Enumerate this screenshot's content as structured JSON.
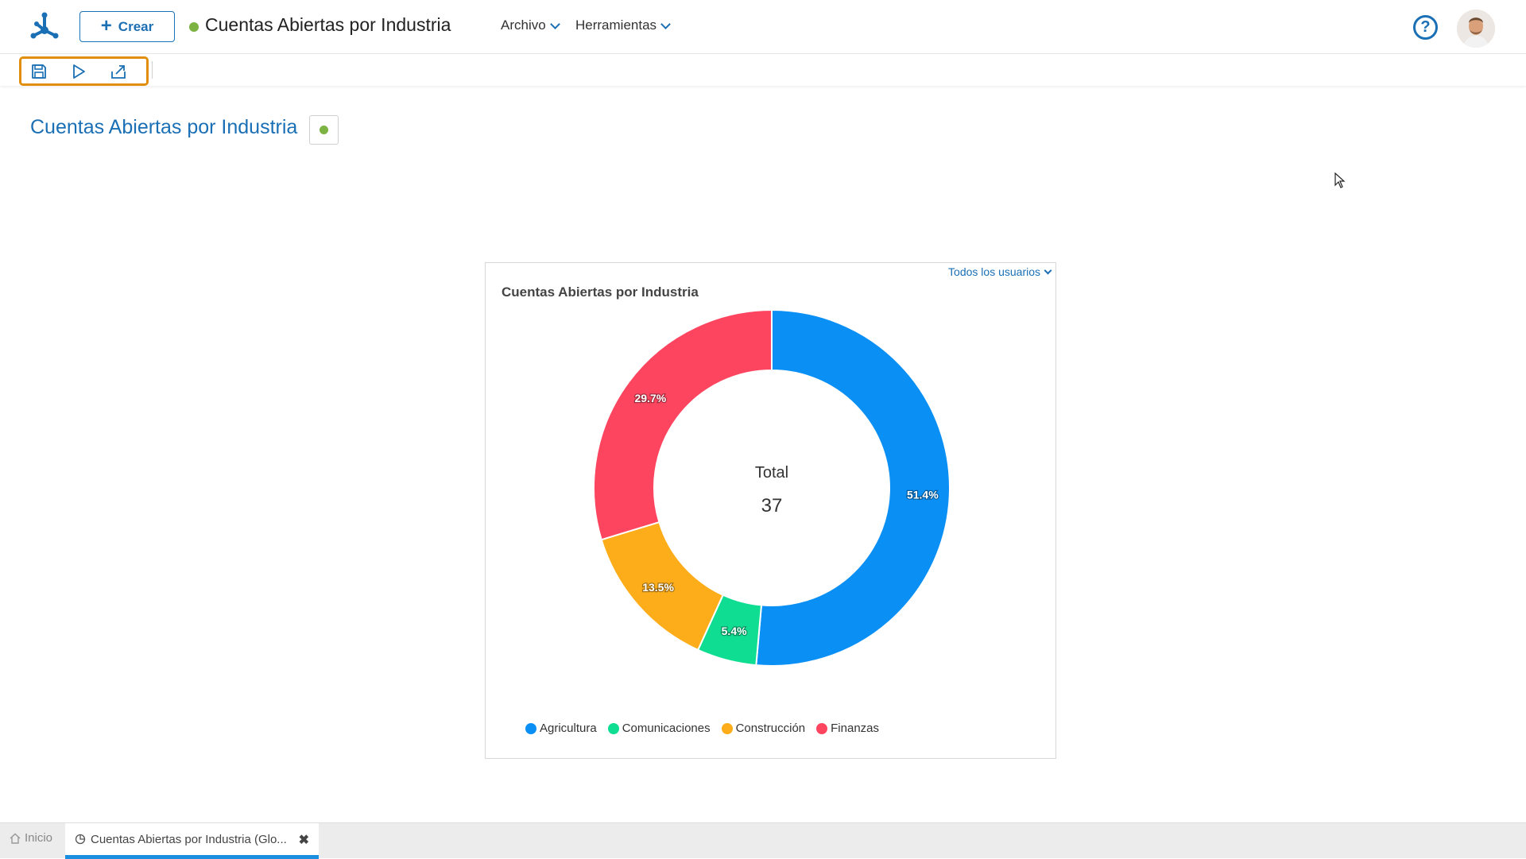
{
  "header": {
    "create_label": "Crear",
    "doc_title": "Cuentas Abiertas por Industria",
    "menus": [
      {
        "label": "Archivo"
      },
      {
        "label": "Herramientas"
      }
    ],
    "help_label": "?"
  },
  "toolbar": {
    "icons": [
      "save-icon",
      "run-icon",
      "export-icon"
    ]
  },
  "page": {
    "title": "Cuentas Abiertas por Industria"
  },
  "widget": {
    "users_filter": "Todos los usuarios",
    "center_label": "Total",
    "center_value": "37"
  },
  "chart_data": {
    "type": "pie",
    "title": "Cuentas Abiertas por Industria",
    "categories": [
      "Agricultura",
      "Comunicaciones",
      "Construcción",
      "Finanzas"
    ],
    "values": [
      51.4,
      5.4,
      13.5,
      29.7
    ],
    "value_labels": [
      "51.4%",
      "5.4%",
      "13.5%",
      "29.7%"
    ],
    "colors": [
      "#0a8ff5",
      "#0fdd92",
      "#fdad1a",
      "#fe4560"
    ],
    "legend": "bottom",
    "donut": true
  },
  "tabs": {
    "home_label": "Inicio",
    "active_label": "Cuentas Abiertas por Industria (Glo...",
    "close_glyph": "✖"
  }
}
